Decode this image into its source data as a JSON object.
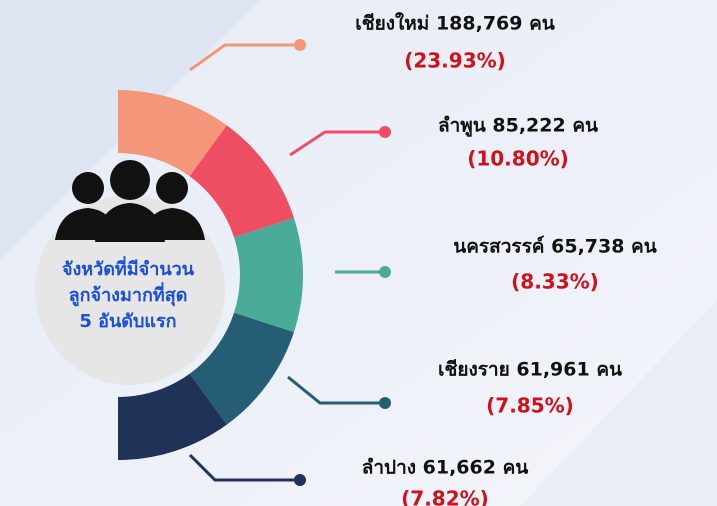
{
  "center": {
    "lines": [
      "จังหวัดที่มีจำนวน",
      "ลูกจ้างมากที่สุด",
      "5 อันดับแรก"
    ]
  },
  "items": [
    {
      "label": "เชียงใหม่ 188,769 คน",
      "percent": "(23.93%)"
    },
    {
      "label": "ลำพูน 85,222 คน",
      "percent": "(10.80%)"
    },
    {
      "label": "นครสวรรค์ 65,738 คน",
      "percent": "(8.33%)"
    },
    {
      "label": "เชียงราย 61,961 คน",
      "percent": "(7.85%)"
    },
    {
      "label": "ลำปาง 61,662 คน",
      "percent": "(7.82%)"
    }
  ]
}
